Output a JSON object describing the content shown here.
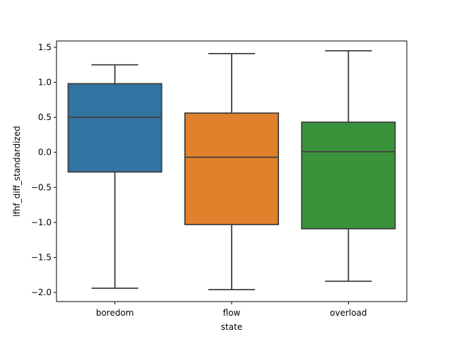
{
  "chart_data": {
    "type": "box",
    "xlabel": "state",
    "ylabel": "lfhf_diff_standardized",
    "ylim": [
      -2.13,
      1.59
    ],
    "y_ticks": [
      1.5,
      1.0,
      0.5,
      0.0,
      -0.5,
      -1.0,
      -1.5,
      -2.0
    ],
    "y_tick_labels": [
      "1.5",
      "1.0",
      "0.5",
      "0.0",
      "−0.5",
      "−1.0",
      "−1.5",
      "−2.0"
    ],
    "categories": [
      "boredom",
      "flow",
      "overload"
    ],
    "boxes": [
      {
        "category": "boredom",
        "whisker_low": -1.94,
        "q1": -0.28,
        "median": 0.5,
        "q3": 0.98,
        "whisker_high": 1.25,
        "color": "#3274a1"
      },
      {
        "category": "flow",
        "whisker_low": -1.96,
        "q1": -1.03,
        "median": -0.07,
        "q3": 0.56,
        "whisker_high": 1.41,
        "color": "#e1812c"
      },
      {
        "category": "overload",
        "whisker_low": -1.84,
        "q1": -1.09,
        "median": 0.01,
        "q3": 0.43,
        "whisker_high": 1.45,
        "color": "#3a923a"
      }
    ],
    "grid": false,
    "legend": "none"
  }
}
